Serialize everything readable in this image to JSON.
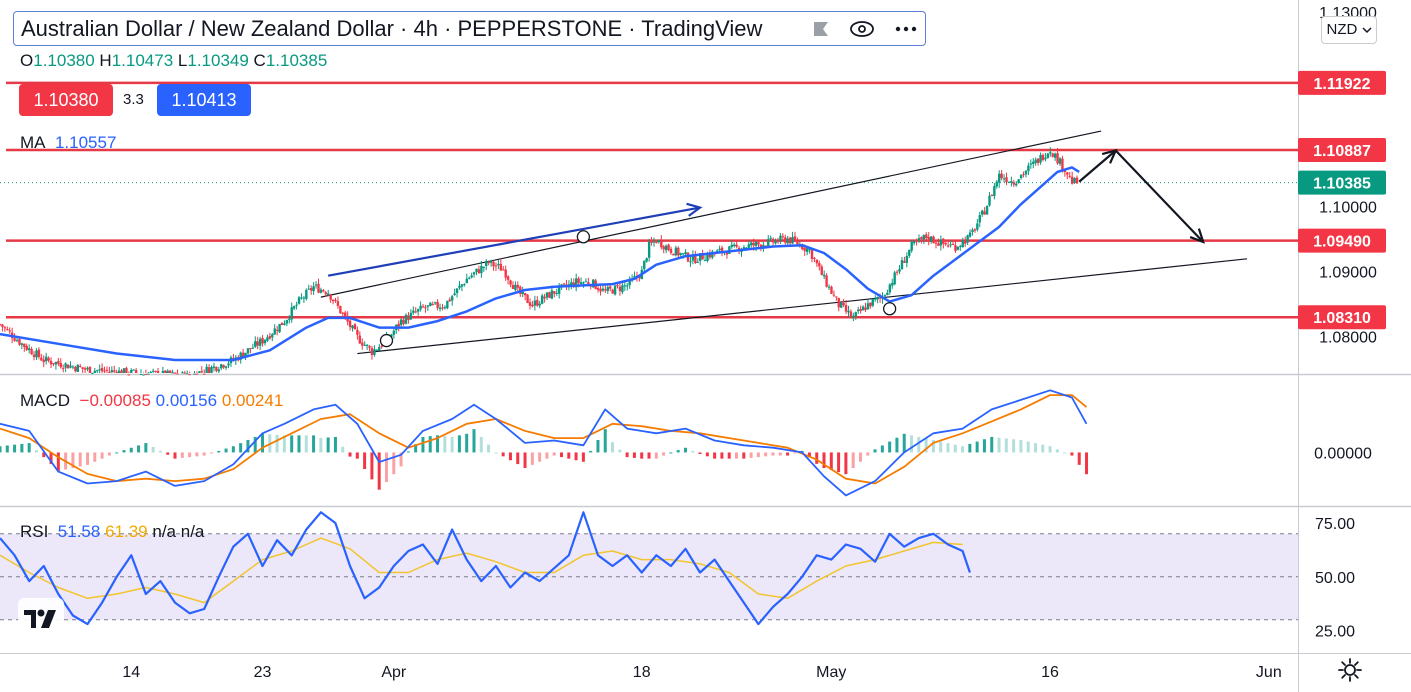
{
  "header": {
    "title": "Australian Dollar / New Zealand Dollar · 4h · PEPPERSTONE · TradingView",
    "ohlc": [
      {
        "k": "O",
        "v": "1.10380"
      },
      {
        "k": "H",
        "v": "1.10473"
      },
      {
        "k": "L",
        "v": "1.10349"
      },
      {
        "k": "C",
        "v": "1.10385"
      }
    ],
    "sell_price": "1.10380",
    "spread": "3.3",
    "buy_price": "1.10413",
    "currency": "NZD"
  },
  "icons": [
    "eye-icon",
    "more-icon",
    "flag-icon",
    "chevron-down-icon",
    "tradingview-logo-icon",
    "gear-icon"
  ],
  "colors": {
    "up": "#089981",
    "down": "#f23645",
    "ma": "#2962ff",
    "level": "#e53945",
    "macd": "#2962ff",
    "signal": "#f57c00",
    "rsi": "#2962ff",
    "rsi_ma": "#f2c52e"
  },
  "chart_data": [
    {
      "type": "candlestick",
      "panel": "price",
      "y_ticks": [
        "1.13000",
        "1.10000",
        "1.09000",
        "1.08000"
      ],
      "ylim": [
        1.0745,
        1.132
      ],
      "x_ticks": [
        "14",
        "23",
        "Apr",
        "18",
        "May",
        "16",
        "Jun"
      ],
      "x_ticks_days": [
        14,
        23,
        32,
        49,
        62,
        77,
        92
      ],
      "days_shown": [
        5,
        94
      ],
      "price_labels": [
        {
          "value": 1.11922,
          "text": "1.11922",
          "color": "#f23645"
        },
        {
          "value": 1.10887,
          "text": "1.10887",
          "color": "#f23645"
        },
        {
          "value": 1.10385,
          "text": "1.10385",
          "color": "#089981"
        },
        {
          "value": 1.0949,
          "text": "1.09490",
          "color": "#f23645"
        },
        {
          "value": 1.0831,
          "text": "1.08310",
          "color": "#f23645"
        }
      ],
      "horizontal_levels": [
        1.11922,
        1.10887,
        1.0949,
        1.0831
      ],
      "ma_legend": {
        "label": "MA",
        "value": "1.10557"
      },
      "close_path": [
        [
          5,
          1.082
        ],
        [
          6.5,
          1.079
        ],
        [
          8,
          1.0765
        ],
        [
          11,
          1.075
        ],
        [
          14,
          1.0745
        ],
        [
          18,
          1.074
        ],
        [
          21,
          1.0765
        ],
        [
          23,
          1.0795
        ],
        [
          24.5,
          1.0825
        ],
        [
          25.5,
          1.0855
        ],
        [
          26.5,
          1.0878
        ],
        [
          27.5,
          1.087
        ],
        [
          28.5,
          1.0835
        ],
        [
          29.5,
          1.08
        ],
        [
          30.5,
          1.0778
        ],
        [
          31.5,
          1.0795
        ],
        [
          32.5,
          1.0825
        ],
        [
          34,
          1.0845
        ],
        [
          35.5,
          1.085
        ],
        [
          37,
          1.089
        ],
        [
          38.5,
          1.0915
        ],
        [
          39.5,
          1.0905
        ],
        [
          40.5,
          1.087
        ],
        [
          41.5,
          1.085
        ],
        [
          43,
          1.087
        ],
        [
          44.5,
          1.0885
        ],
        [
          45.5,
          1.0885
        ],
        [
          46.5,
          1.087
        ],
        [
          48,
          1.088
        ],
        [
          49,
          1.09
        ],
        [
          49.5,
          1.094
        ],
        [
          50,
          1.095
        ],
        [
          51,
          1.0935
        ],
        [
          52.5,
          1.092
        ],
        [
          54,
          1.093
        ],
        [
          56,
          1.094
        ],
        [
          57.5,
          1.0945
        ],
        [
          59,
          1.0952
        ],
        [
          60.5,
          1.0935
        ],
        [
          61.5,
          1.089
        ],
        [
          62.5,
          1.085
        ],
        [
          63.5,
          1.083
        ],
        [
          64.5,
          1.085
        ],
        [
          65.5,
          1.0862
        ],
        [
          66.5,
          1.09
        ],
        [
          67.5,
          1.094
        ],
        [
          68.5,
          1.0955
        ],
        [
          69.5,
          1.0945
        ],
        [
          70.5,
          1.094
        ],
        [
          71.5,
          1.0955
        ],
        [
          72.5,
          1.0995
        ],
        [
          73.5,
          1.105
        ],
        [
          74.5,
          1.104
        ],
        [
          75.5,
          1.106
        ],
        [
          76.5,
          1.108
        ],
        [
          77,
          1.109
        ],
        [
          77.5,
          1.1075
        ],
        [
          78,
          1.106
        ],
        [
          78.5,
          1.104
        ],
        [
          79,
          1.1038
        ]
      ],
      "ma_path": [
        [
          5,
          1.0805
        ],
        [
          9,
          1.079
        ],
        [
          13,
          1.0775
        ],
        [
          17,
          1.0765
        ],
        [
          21,
          1.0765
        ],
        [
          23.5,
          1.078
        ],
        [
          26,
          1.0815
        ],
        [
          27.5,
          1.083
        ],
        [
          29,
          1.083
        ],
        [
          31,
          1.0815
        ],
        [
          33,
          1.0815
        ],
        [
          35,
          1.0825
        ],
        [
          37,
          1.084
        ],
        [
          39,
          1.086
        ],
        [
          41,
          1.0873
        ],
        [
          43,
          1.0878
        ],
        [
          45,
          1.088
        ],
        [
          47,
          1.0882
        ],
        [
          48.5,
          1.089
        ],
        [
          50,
          1.0912
        ],
        [
          52,
          1.0925
        ],
        [
          54,
          1.093
        ],
        [
          56,
          1.0935
        ],
        [
          58,
          1.094
        ],
        [
          60,
          1.0942
        ],
        [
          61.5,
          1.093
        ],
        [
          63,
          1.0905
        ],
        [
          64.5,
          1.0875
        ],
        [
          66,
          1.0855
        ],
        [
          67.5,
          1.0865
        ],
        [
          69,
          1.0895
        ],
        [
          70.5,
          1.092
        ],
        [
          72,
          1.0945
        ],
        [
          73.5,
          1.097
        ],
        [
          75,
          1.1005
        ],
        [
          76.5,
          1.1035
        ],
        [
          77.5,
          1.1055
        ],
        [
          78.5,
          1.1062
        ],
        [
          79,
          1.1055
        ]
      ],
      "channel_upper": [
        [
          27,
          1.0862
        ],
        [
          80.5,
          1.1118
        ]
      ],
      "channel_lower": [
        [
          29.5,
          1.0775
        ],
        [
          90.5,
          1.0921
        ]
      ],
      "arrows": [
        {
          "from": [
            27.5,
            1.0895
          ],
          "to": [
            53,
            1.1
          ],
          "color": "#1e3fb8"
        },
        {
          "from": [
            79,
            1.104
          ],
          "to": [
            81.5,
            1.1088
          ],
          "color": "#131722"
        },
        {
          "from": [
            81.5,
            1.1088
          ],
          "to": [
            87.5,
            1.0947
          ],
          "color": "#131722"
        }
      ],
      "circles": [
        [
          31.5,
          1.0795
        ],
        [
          45,
          1.0955
        ],
        [
          66,
          1.0844
        ]
      ]
    },
    {
      "type": "line",
      "panel": "macd",
      "legend_label": "MACD",
      "legend_values": [
        "−0.00085",
        "0.00156",
        "0.00241"
      ],
      "y_ticks": [
        "0.00000"
      ],
      "series_note": "MACD line (blue), signal line (orange), histogram (green/red)",
      "macd": [
        [
          5,
          0.0012
        ],
        [
          7,
          0.0009
        ],
        [
          9,
          -0.0008
        ],
        [
          11,
          -0.0013
        ],
        [
          13,
          -0.0012
        ],
        [
          15,
          -0.0008
        ],
        [
          17,
          -0.0014
        ],
        [
          19,
          -0.0012
        ],
        [
          21,
          -0.0005
        ],
        [
          23,
          0.0008
        ],
        [
          24.5,
          0.0012
        ],
        [
          26.5,
          0.0018
        ],
        [
          28,
          0.002
        ],
        [
          29.5,
          0.0012
        ],
        [
          31,
          -0.0004
        ],
        [
          32.5,
          -0.0001
        ],
        [
          34,
          0.0009
        ],
        [
          36,
          0.0014
        ],
        [
          37.5,
          0.002
        ],
        [
          39,
          0.0014
        ],
        [
          41,
          0.0004
        ],
        [
          43,
          0.0005
        ],
        [
          45,
          0.0003
        ],
        [
          46.5,
          0.0018
        ],
        [
          48,
          0.001
        ],
        [
          50,
          0.0008
        ],
        [
          52,
          0.001
        ],
        [
          54,
          0.0005
        ],
        [
          56,
          0.0003
        ],
        [
          58,
          0.0002
        ],
        [
          60,
          0.0
        ],
        [
          61.5,
          -0.001
        ],
        [
          63,
          -0.0018
        ],
        [
          65,
          -0.0012
        ],
        [
          67,
          0.0
        ],
        [
          69,
          0.0008
        ],
        [
          71,
          0.001
        ],
        [
          73,
          0.0018
        ],
        [
          75,
          0.0022
        ],
        [
          77,
          0.0026
        ],
        [
          78.5,
          0.0023
        ],
        [
          79.5,
          0.0012
        ]
      ],
      "signal": [
        [
          5,
          0.001
        ],
        [
          7,
          0.0006
        ],
        [
          9,
          -0.0002
        ],
        [
          11,
          -0.0009
        ],
        [
          13,
          -0.0012
        ],
        [
          15,
          -0.0011
        ],
        [
          17,
          -0.0012
        ],
        [
          19,
          -0.0011
        ],
        [
          21,
          -0.0007
        ],
        [
          23,
          0.0002
        ],
        [
          25,
          0.0008
        ],
        [
          27,
          0.0014
        ],
        [
          29,
          0.0016
        ],
        [
          31,
          0.0008
        ],
        [
          33,
          0.0002
        ],
        [
          35,
          0.0006
        ],
        [
          37,
          0.0012
        ],
        [
          39,
          0.0014
        ],
        [
          41,
          0.0009
        ],
        [
          43,
          0.0006
        ],
        [
          45,
          0.0006
        ],
        [
          47,
          0.0012
        ],
        [
          49,
          0.0011
        ],
        [
          51,
          0.0009
        ],
        [
          53,
          0.0008
        ],
        [
          55,
          0.0006
        ],
        [
          57,
          0.0004
        ],
        [
          59,
          0.0002
        ],
        [
          61,
          -0.0003
        ],
        [
          63,
          -0.0011
        ],
        [
          65,
          -0.0013
        ],
        [
          67,
          -0.0006
        ],
        [
          69,
          0.0004
        ],
        [
          71,
          0.0008
        ],
        [
          73,
          0.0013
        ],
        [
          75,
          0.0018
        ],
        [
          77,
          0.0024
        ],
        [
          78.5,
          0.0024
        ],
        [
          79.5,
          0.0019
        ]
      ],
      "ylim": [
        -0.0022,
        0.0032
      ]
    },
    {
      "type": "line",
      "panel": "rsi",
      "legend_label": "RSI",
      "legend_values": [
        "51.58",
        "61.39",
        "n/a",
        "n/a"
      ],
      "y_ticks": [
        "75.00",
        "50.00",
        "25.00"
      ],
      "bands": [
        30,
        50,
        70
      ],
      "ylim": [
        15,
        82
      ],
      "rsi": [
        [
          5,
          68
        ],
        [
          6,
          60
        ],
        [
          7,
          48
        ],
        [
          8,
          55
        ],
        [
          9,
          42
        ],
        [
          10,
          32
        ],
        [
          11,
          28
        ],
        [
          12,
          38
        ],
        [
          13,
          50
        ],
        [
          14,
          60
        ],
        [
          15,
          42
        ],
        [
          16,
          48
        ],
        [
          17,
          38
        ],
        [
          18,
          33
        ],
        [
          19,
          35
        ],
        [
          20,
          50
        ],
        [
          21,
          64
        ],
        [
          22,
          70
        ],
        [
          23,
          55
        ],
        [
          24,
          67
        ],
        [
          25,
          60
        ],
        [
          26,
          72
        ],
        [
          27,
          80
        ],
        [
          28,
          75
        ],
        [
          29,
          55
        ],
        [
          30,
          40
        ],
        [
          31,
          45
        ],
        [
          32,
          55
        ],
        [
          33,
          62
        ],
        [
          34,
          65
        ],
        [
          35,
          56
        ],
        [
          36,
          72
        ],
        [
          37,
          58
        ],
        [
          38,
          48
        ],
        [
          39,
          55
        ],
        [
          40,
          45
        ],
        [
          41,
          52
        ],
        [
          42,
          48
        ],
        [
          43,
          54
        ],
        [
          44,
          60
        ],
        [
          45,
          80
        ],
        [
          46,
          60
        ],
        [
          47,
          55
        ],
        [
          48,
          60
        ],
        [
          49,
          52
        ],
        [
          50,
          60
        ],
        [
          51,
          55
        ],
        [
          52,
          63
        ],
        [
          53,
          52
        ],
        [
          54,
          58
        ],
        [
          55,
          48
        ],
        [
          56,
          38
        ],
        [
          57,
          28
        ],
        [
          58,
          36
        ],
        [
          59,
          42
        ],
        [
          60,
          50
        ],
        [
          61,
          60
        ],
        [
          62,
          58
        ],
        [
          63,
          65
        ],
        [
          64,
          63
        ],
        [
          65,
          57
        ],
        [
          66,
          70
        ],
        [
          67,
          64
        ],
        [
          68,
          68
        ],
        [
          69,
          70
        ],
        [
          70,
          65
        ],
        [
          71,
          62
        ],
        [
          71.5,
          52
        ]
      ],
      "rsi_ma": [
        [
          5,
          60
        ],
        [
          7,
          52
        ],
        [
          9,
          45
        ],
        [
          11,
          40
        ],
        [
          13,
          42
        ],
        [
          15,
          45
        ],
        [
          17,
          42
        ],
        [
          19,
          38
        ],
        [
          21,
          48
        ],
        [
          23,
          58
        ],
        [
          25,
          62
        ],
        [
          27,
          68
        ],
        [
          29,
          63
        ],
        [
          31,
          52
        ],
        [
          33,
          52
        ],
        [
          35,
          58
        ],
        [
          37,
          61
        ],
        [
          39,
          57
        ],
        [
          41,
          52
        ],
        [
          43,
          52
        ],
        [
          45,
          60
        ],
        [
          47,
          62
        ],
        [
          49,
          58
        ],
        [
          51,
          58
        ],
        [
          53,
          56
        ],
        [
          55,
          52
        ],
        [
          57,
          42
        ],
        [
          59,
          40
        ],
        [
          61,
          48
        ],
        [
          63,
          55
        ],
        [
          65,
          58
        ],
        [
          67,
          62
        ],
        [
          69,
          66
        ],
        [
          71,
          65
        ]
      ]
    }
  ]
}
